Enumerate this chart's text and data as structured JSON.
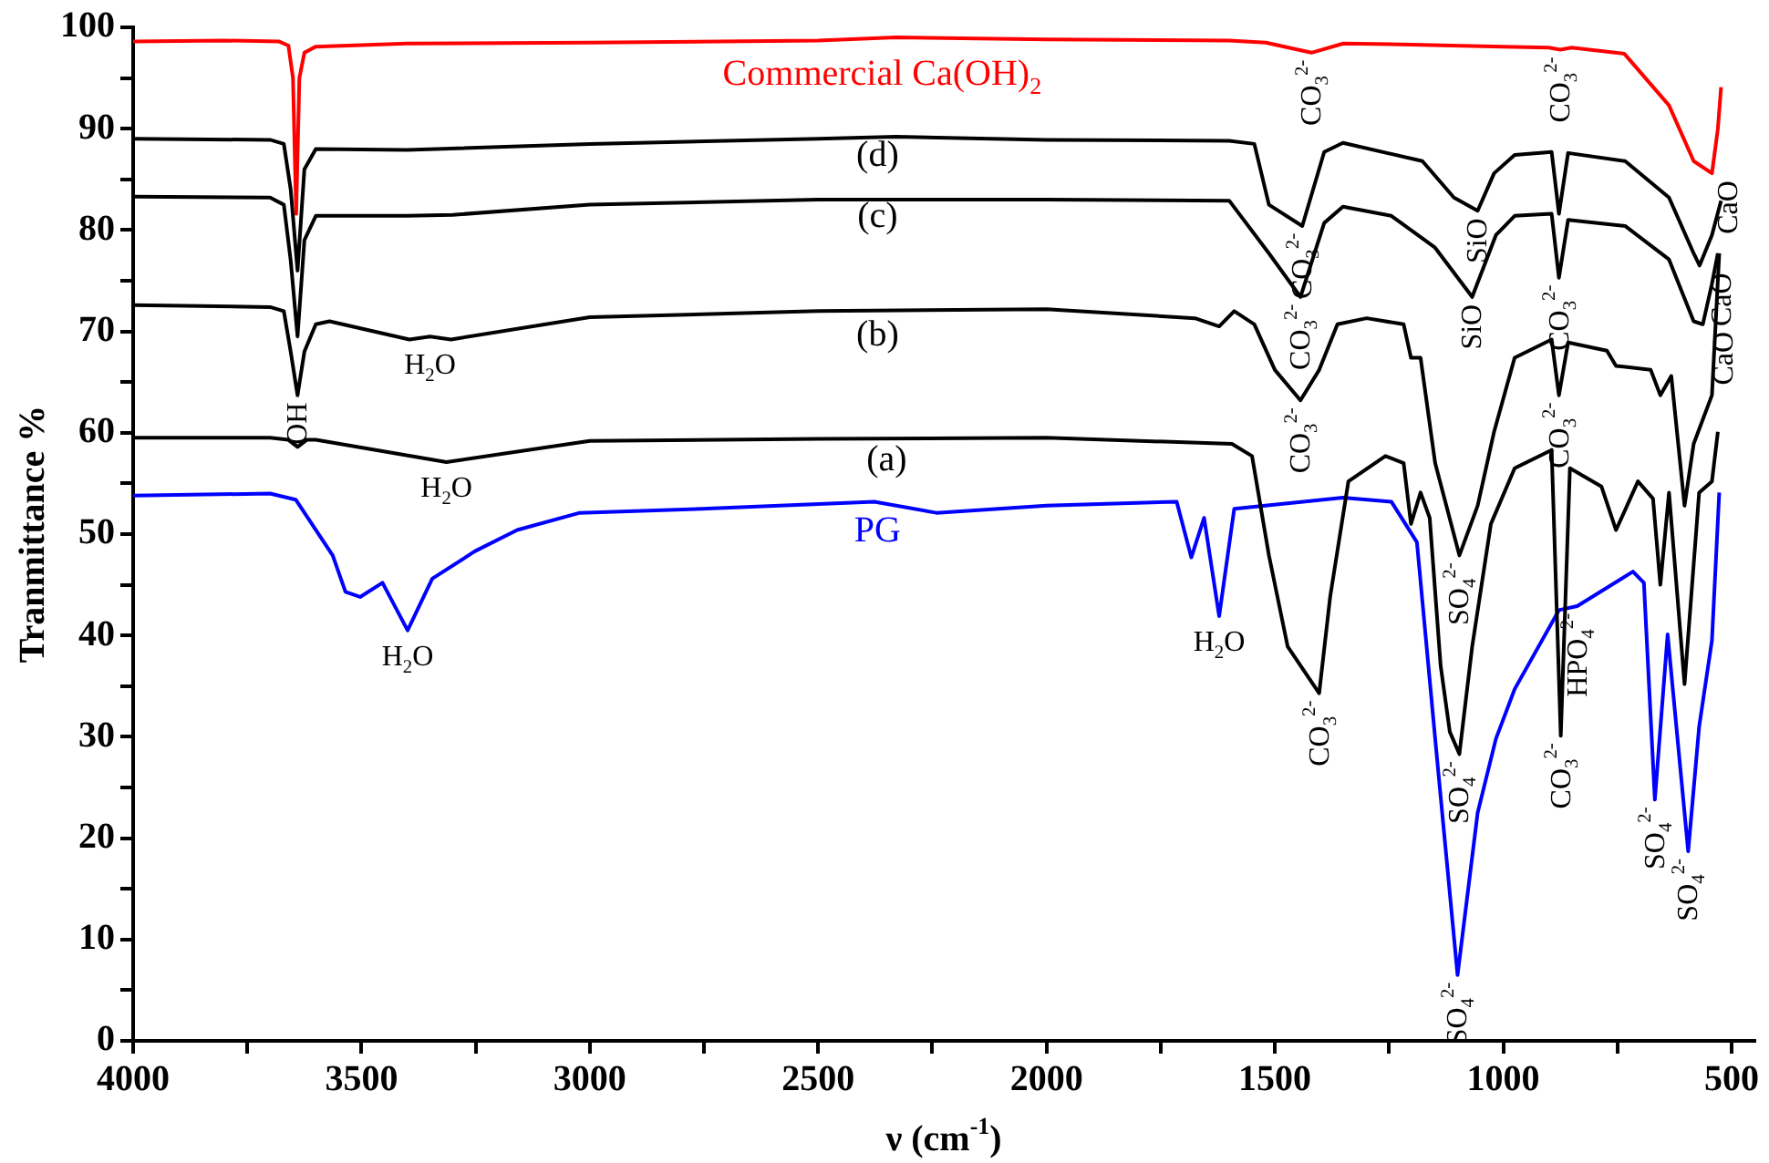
{
  "chart_data": {
    "type": "line",
    "xlabel": "ν (cm$^{-1}$)",
    "ylabel": "Tranmittance %",
    "xlim": [
      4000,
      450
    ],
    "ylim": [
      0,
      100
    ],
    "xticks": [
      4000,
      {
        "value": 3750,
        "label": null
      },
      3500,
      {
        "value": 3250,
        "label": null
      },
      3000,
      {
        "value": 2750,
        "label": null
      },
      2500,
      {
        "value": 2250,
        "label": null
      },
      2000,
      {
        "value": 1750,
        "label": null
      },
      1500,
      {
        "value": 1250,
        "label": null
      },
      1000,
      {
        "value": 750,
        "label": null
      },
      500
    ],
    "yticks": [
      0,
      {
        "value": 5,
        "label": null
      },
      10,
      {
        "value": 15,
        "label": null
      },
      20,
      {
        "value": 25,
        "label": null
      },
      30,
      {
        "value": 35,
        "label": null
      },
      40,
      {
        "value": 45,
        "label": null
      },
      50,
      {
        "value": 55,
        "label": null
      },
      60,
      {
        "value": 65,
        "label": null
      },
      70,
      {
        "value": 75,
        "label": null
      },
      80,
      {
        "value": 85,
        "label": null
      },
      90,
      {
        "value": 95,
        "label": null
      },
      100
    ],
    "series": [
      {
        "name": "Commercial Ca(OH)$_{2}$",
        "color": "#ff0000",
        "x": [
          4000,
          3800,
          3680,
          3660,
          3650,
          3643,
          3636,
          3625,
          3600,
          3400,
          3000,
          2500,
          2330,
          2000,
          1600,
          1520,
          1420,
          1350,
          1200,
          1000,
          900,
          875,
          850,
          735,
          637,
          583,
          543,
          530,
          523
        ],
        "values": [
          98.6,
          98.7,
          98.6,
          98.2,
          95,
          81.6,
          95,
          97.5,
          98.1,
          98.4,
          98.5,
          98.7,
          99,
          98.8,
          98.7,
          98.5,
          97.5,
          98.4,
          98.3,
          98.1,
          98.0,
          97.8,
          98.0,
          97.4,
          92.3,
          86.8,
          85.6,
          90,
          94.1
        ]
      },
      {
        "name": "(d)",
        "color": "#000000",
        "x": [
          4000,
          3700,
          3670,
          3655,
          3640,
          3625,
          3600,
          3400,
          3000,
          2500,
          2330,
          2000,
          1600,
          1545,
          1513,
          1440,
          1392,
          1351,
          1177,
          1108,
          1056,
          1020,
          975,
          894,
          878,
          858,
          733,
          637,
          583,
          570,
          543,
          523
        ],
        "values": [
          89.0,
          88.9,
          88.5,
          84,
          76,
          86,
          88.0,
          87.9,
          88.5,
          89.0,
          89.2,
          88.9,
          88.8,
          88.5,
          82.5,
          80.4,
          87.7,
          88.6,
          86.8,
          83.2,
          81.9,
          85.6,
          87.4,
          87.7,
          81.6,
          87.6,
          86.8,
          83.2,
          77.7,
          76.5,
          79.5,
          82.9
        ]
      },
      {
        "name": "(c)",
        "color": "#000000",
        "x": [
          4000,
          3700,
          3670,
          3655,
          3640,
          3625,
          3600,
          3400,
          3300,
          3000,
          2500,
          2000,
          1600,
          1513,
          1444,
          1392,
          1351,
          1245,
          1150,
          1068,
          1016,
          975,
          894,
          878,
          858,
          733,
          637,
          583,
          563,
          543,
          530
        ],
        "values": [
          83.3,
          83.2,
          82.5,
          77,
          69.5,
          79,
          81.4,
          81.4,
          81.5,
          82.5,
          83.0,
          83.0,
          82.9,
          77.7,
          73.4,
          80.7,
          82.3,
          81.4,
          78.3,
          73.4,
          79.5,
          81.4,
          81.6,
          75.3,
          81.0,
          80.4,
          77.1,
          71.0,
          70.7,
          74.7,
          77.7
        ]
      },
      {
        "name": "(b)",
        "color": "#000000",
        "x": [
          4000,
          3700,
          3670,
          3655,
          3640,
          3625,
          3600,
          3570,
          3395,
          3350,
          3304,
          3000,
          2500,
          2000,
          1675,
          1622,
          1589,
          1545,
          1500,
          1444,
          1403,
          1363,
          1299,
          1218,
          1202,
          1181,
          1149,
          1096,
          1056,
          1020,
          975,
          894,
          878,
          858,
          773,
          753,
          677,
          656,
          632,
          603,
          583,
          543,
          527
        ],
        "values": [
          72.6,
          72.4,
          72,
          68,
          63.7,
          68,
          70.7,
          71.0,
          69.2,
          69.5,
          69.2,
          71.4,
          72.0,
          72.2,
          71.3,
          70.5,
          72.0,
          70.7,
          66.2,
          63.2,
          66.2,
          70.7,
          71.3,
          70.7,
          67.4,
          67.4,
          57.0,
          47.9,
          52.8,
          60.1,
          67.4,
          69.2,
          63.7,
          68.9,
          68.1,
          66.6,
          66.2,
          63.7,
          65.6,
          52.8,
          58.9,
          63.7,
          77.7
        ]
      },
      {
        "name": "(a)",
        "color": "#000000",
        "x": [
          4000,
          3700,
          3660,
          3640,
          3620,
          3600,
          3314,
          3000,
          2500,
          2000,
          1594,
          1550,
          1513,
          1472,
          1403,
          1379,
          1339,
          1258,
          1218,
          1202,
          1181,
          1161,
          1137,
          1117,
          1096,
          1068,
          1027,
          975,
          894,
          874,
          854,
          785,
          753,
          705,
          672,
          656,
          637,
          603,
          571,
          543,
          530
        ],
        "values": [
          59.5,
          59.5,
          59.3,
          58.6,
          59.3,
          59.3,
          57.1,
          59.2,
          59.4,
          59.5,
          58.9,
          57.7,
          47.9,
          38.9,
          34.3,
          43.8,
          55.2,
          57.7,
          57.0,
          51.0,
          54.1,
          51.6,
          37.0,
          30.5,
          28.3,
          38.9,
          51.0,
          56.5,
          58.3,
          30.1,
          56.5,
          54.7,
          50.4,
          55.2,
          53.5,
          45.0,
          54.1,
          35.2,
          54.1,
          55.2,
          60.1
        ]
      },
      {
        "name": "PG",
        "color": "#0000ff",
        "x": [
          4000,
          3700,
          3644,
          3563,
          3535,
          3503,
          3454,
          3399,
          3345,
          3252,
          3159,
          3022,
          2755,
          2377,
          2241,
          2000,
          1715,
          1683,
          1655,
          1622,
          1589,
          1351,
          1245,
          1189,
          1149,
          1100,
          1056,
          1016,
          975,
          878,
          838,
          716,
          692,
          668,
          640,
          595,
          571,
          543,
          527
        ],
        "values": [
          53.8,
          54.0,
          53.4,
          47.9,
          44.3,
          43.8,
          45.2,
          40.5,
          45.6,
          48.3,
          50.4,
          52.1,
          52.5,
          53.2,
          52.1,
          52.8,
          53.2,
          47.7,
          51.6,
          41.9,
          52.5,
          53.6,
          53.2,
          49.2,
          29.8,
          6.5,
          22.5,
          29.8,
          34.7,
          42.5,
          42.9,
          46.3,
          45.2,
          23.8,
          40.1,
          18.7,
          31.0,
          39.5,
          54.1
        ]
      }
    ],
    "annotations": [
      {
        "text": "CO$_{3}$$^{2-}$",
        "x": 1420,
        "y": 97.5
      },
      {
        "text": "CO$_{3}$$^{2-}$",
        "x": 875,
        "y": 97.8
      },
      {
        "text": "CaO",
        "x": 543,
        "y": 85.6
      },
      {
        "text": "CO$_{3}$$^{2-}$",
        "x": 1440,
        "y": 80.4
      },
      {
        "text": "SiO",
        "x": 1056,
        "y": 81.9
      },
      {
        "text": "CaO",
        "x": 570,
        "y": 76.5
      },
      {
        "text": "CO$_{3}$$^{2-}$",
        "x": 1444,
        "y": 73.4
      },
      {
        "text": "SiO",
        "x": 1068,
        "y": 73.4
      },
      {
        "text": "CO$_{3}$$^{2-}$",
        "x": 878,
        "y": 75.3
      },
      {
        "text": "CaO",
        "x": 563,
        "y": 70.7
      },
      {
        "text": "OH",
        "x": 3640,
        "y": 63.7
      },
      {
        "text": "H$_{2}$O",
        "x": 3350,
        "y": 69.2
      },
      {
        "text": "CO$_{3}$$^{2-}$",
        "x": 1444,
        "y": 63.2
      },
      {
        "text": "SO$_{4}$$^{2-}$",
        "x": 1096,
        "y": 47.9
      },
      {
        "text": "CO$_{3}$$^{2-}$",
        "x": 878,
        "y": 63.7
      },
      {
        "text": "H$_{2}$O",
        "x": 3314,
        "y": 57.1
      },
      {
        "text": "CO$_{3}$$^{2-}$",
        "x": 1403,
        "y": 34.3
      },
      {
        "text": "SO$_{4}$$^{2-}$",
        "x": 1096,
        "y": 28.3
      },
      {
        "text": "CO$_{3}$$^{2-}$",
        "x": 874,
        "y": 30.1
      },
      {
        "text": "H$_{2}$O",
        "x": 3399,
        "y": 40.5
      },
      {
        "text": "H$_{2}$O",
        "x": 1622,
        "y": 41.9
      },
      {
        "text": "SO$_{4}$$^{2-}$",
        "x": 1100,
        "y": 6.5
      },
      {
        "text": "HPO$_{4}$$^{2-}$",
        "x": 838,
        "y": 42.9
      },
      {
        "text": "SO$_{4}$$^{2-}$",
        "x": 668,
        "y": 23.8
      },
      {
        "text": "SO$_{4}$$^{2-}$",
        "x": 595,
        "y": 18.7
      }
    ]
  }
}
